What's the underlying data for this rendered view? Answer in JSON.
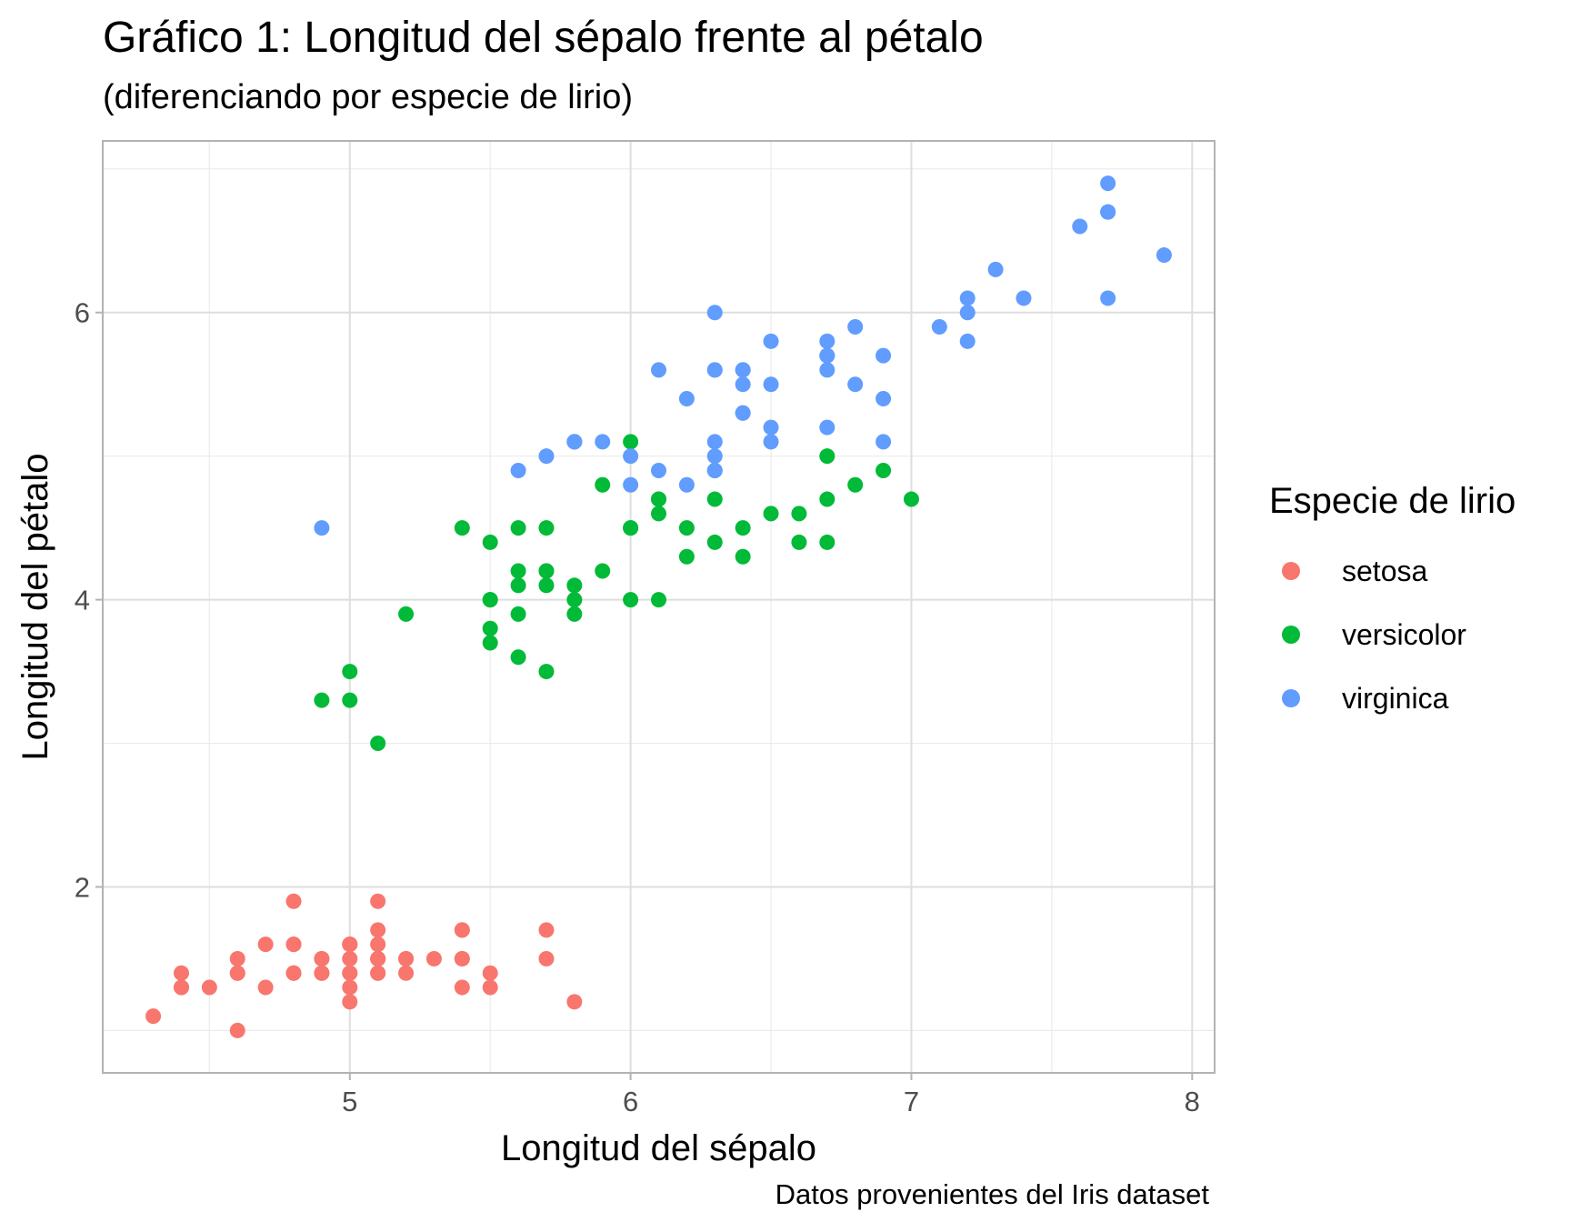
{
  "chart_data": {
    "type": "scatter",
    "title": "Gráfico 1: Longitud del sépalo frente al pétalo",
    "subtitle": "(diferenciando por especie de lirio)",
    "xlabel": "Longitud del sépalo",
    "ylabel": "Longitud del pétalo",
    "caption": "Datos provenientes del Iris dataset",
    "xlim": [
      4.12,
      8.08
    ],
    "ylim": [
      0.705,
      7.195
    ],
    "xticks": [
      5,
      6,
      7,
      8
    ],
    "yticks": [
      2,
      4,
      6
    ],
    "grid": true,
    "legend": {
      "title": "Especie de lirio",
      "position": "right"
    },
    "series": [
      {
        "name": "setosa",
        "color": "#F8766D",
        "x": [
          5.1,
          4.9,
          4.7,
          4.6,
          5.0,
          5.4,
          4.6,
          5.0,
          4.4,
          4.9,
          5.4,
          4.8,
          4.8,
          4.3,
          5.8,
          5.7,
          5.4,
          5.1,
          5.7,
          5.1,
          5.4,
          5.1,
          4.6,
          5.1,
          4.8,
          5.0,
          5.0,
          5.2,
          5.2,
          4.7,
          4.8,
          5.4,
          5.2,
          5.5,
          4.9,
          5.0,
          5.5,
          4.9,
          4.4,
          5.1,
          5.0,
          4.5,
          4.4,
          5.0,
          5.1,
          4.8,
          5.1,
          4.6,
          5.3,
          5.0
        ],
        "y": [
          1.4,
          1.4,
          1.3,
          1.5,
          1.4,
          1.7,
          1.4,
          1.5,
          1.4,
          1.5,
          1.5,
          1.6,
          1.4,
          1.1,
          1.2,
          1.5,
          1.3,
          1.4,
          1.7,
          1.5,
          1.7,
          1.5,
          1.0,
          1.7,
          1.9,
          1.6,
          1.6,
          1.5,
          1.4,
          1.6,
          1.6,
          1.5,
          1.5,
          1.4,
          1.5,
          1.2,
          1.3,
          1.4,
          1.3,
          1.5,
          1.3,
          1.3,
          1.3,
          1.6,
          1.9,
          1.4,
          1.6,
          1.4,
          1.5,
          1.4
        ]
      },
      {
        "name": "versicolor",
        "color": "#00BA38",
        "x": [
          7.0,
          6.4,
          6.9,
          5.5,
          6.5,
          5.7,
          6.3,
          4.9,
          6.6,
          5.2,
          5.0,
          5.9,
          6.0,
          6.1,
          5.6,
          6.7,
          5.6,
          5.8,
          6.2,
          5.6,
          5.9,
          6.1,
          6.3,
          6.1,
          6.4,
          6.6,
          6.8,
          6.7,
          6.0,
          5.7,
          5.5,
          5.5,
          5.8,
          6.0,
          5.4,
          6.0,
          6.7,
          6.3,
          5.6,
          5.5,
          5.5,
          6.1,
          5.8,
          5.0,
          5.6,
          5.7,
          5.7,
          6.2,
          5.1,
          5.7
        ],
        "y": [
          4.7,
          4.5,
          4.9,
          4.0,
          4.6,
          4.5,
          4.7,
          3.3,
          4.6,
          3.9,
          3.5,
          4.2,
          4.0,
          4.7,
          3.6,
          4.4,
          4.5,
          4.1,
          4.5,
          3.9,
          4.8,
          4.0,
          4.9,
          4.7,
          4.3,
          4.4,
          4.8,
          5.0,
          4.5,
          3.5,
          3.8,
          3.7,
          3.9,
          5.1,
          4.5,
          4.5,
          4.7,
          4.4,
          4.1,
          4.0,
          4.4,
          4.6,
          4.0,
          3.3,
          4.2,
          4.2,
          4.2,
          4.3,
          3.0,
          4.1
        ]
      },
      {
        "name": "virginica",
        "color": "#619CFF",
        "x": [
          6.3,
          5.8,
          7.1,
          6.3,
          6.5,
          7.6,
          4.9,
          7.3,
          6.7,
          7.2,
          6.5,
          6.4,
          6.8,
          5.7,
          5.8,
          6.4,
          6.5,
          7.7,
          7.7,
          6.0,
          6.9,
          5.6,
          7.7,
          6.3,
          6.7,
          7.2,
          6.2,
          6.1,
          6.4,
          7.2,
          7.4,
          7.9,
          6.4,
          6.3,
          6.1,
          7.7,
          6.3,
          6.4,
          6.0,
          6.9,
          6.7,
          6.9,
          5.8,
          6.8,
          6.7,
          6.7,
          6.3,
          6.5,
          6.2,
          5.9
        ],
        "y": [
          6.0,
          5.1,
          5.9,
          5.6,
          5.8,
          6.6,
          4.5,
          6.3,
          5.8,
          6.1,
          5.1,
          5.3,
          5.5,
          5.0,
          5.1,
          5.3,
          5.5,
          6.7,
          6.9,
          5.0,
          5.7,
          4.9,
          6.7,
          4.9,
          5.7,
          6.0,
          4.8,
          4.9,
          5.6,
          5.8,
          6.1,
          6.4,
          5.6,
          5.1,
          5.6,
          6.1,
          5.6,
          5.5,
          4.8,
          5.4,
          5.6,
          5.1,
          5.1,
          5.9,
          5.7,
          5.2,
          5.0,
          5.2,
          5.4,
          5.1
        ]
      }
    ]
  }
}
